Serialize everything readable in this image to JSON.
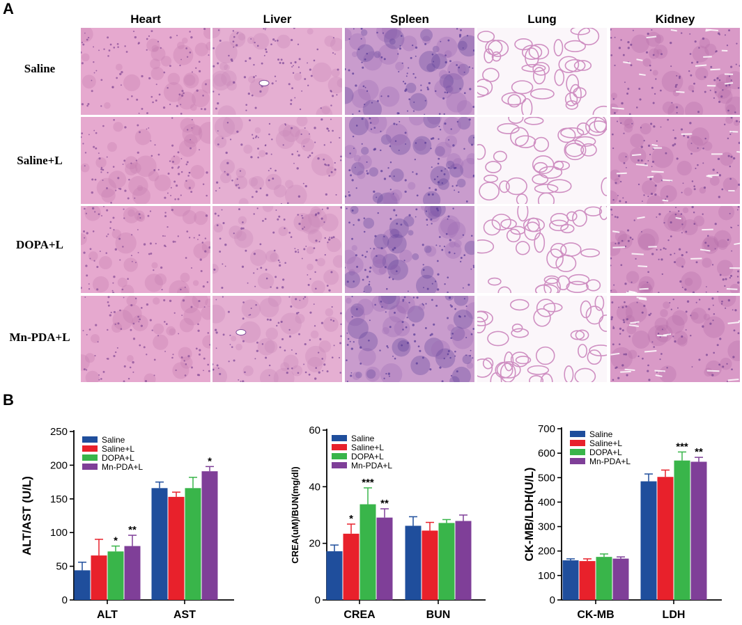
{
  "panel_a": {
    "label": "A",
    "columns": [
      "Heart",
      "Liver",
      "Spleen",
      "Lung",
      "Kidney"
    ],
    "rows": [
      "Saline",
      "Saline+L",
      "DOPA+L",
      "Mn-PDA+L"
    ],
    "tissue_colors": {
      "Heart": {
        "base": "#e6a9cf",
        "stain": "#c47cae",
        "dark": "#8a4f98"
      },
      "Liver": {
        "base": "#e5afd2",
        "stain": "#c787b8",
        "dark": "#7f4a98"
      },
      "Spleen": {
        "base": "#c99ccd",
        "stain": "#9a6bb5",
        "dark": "#5b3d98"
      },
      "Lung": {
        "base": "#fbf6fa",
        "stain": "#cf8fc2",
        "dark": "#8e5aa6"
      },
      "Kidney": {
        "base": "#d99ac7",
        "stain": "#b46ea8",
        "dark": "#7a4594"
      }
    }
  },
  "panel_b": {
    "label": "B"
  },
  "colors": {
    "Saline": "#1f4e9c",
    "Saline+L": "#e8212b",
    "DOPA+L": "#39b54a",
    "Mn-PDA+L": "#7f3f98"
  },
  "chart_data": [
    {
      "type": "bar",
      "categories": [
        "ALT",
        "AST"
      ],
      "series": [
        {
          "name": "Saline",
          "values": [
            44,
            166
          ],
          "errors": [
            12,
            9
          ]
        },
        {
          "name": "Saline+L",
          "values": [
            66,
            153
          ],
          "errors": [
            24,
            7
          ]
        },
        {
          "name": "DOPA+L",
          "values": [
            72,
            166
          ],
          "errors": [
            8,
            16
          ]
        },
        {
          "name": "Mn-PDA+L",
          "values": [
            80,
            191
          ],
          "errors": [
            16,
            7
          ]
        }
      ],
      "significance": [
        [
          "",
          ""
        ],
        [
          "",
          ""
        ],
        [
          "*",
          ""
        ],
        [
          "**",
          "*"
        ]
      ],
      "ylabel": "ALT/AST (U/L)",
      "ylim": [
        0,
        250
      ],
      "yticks": [
        0,
        50,
        100,
        150,
        200,
        250
      ],
      "legend": "top-left"
    },
    {
      "type": "bar",
      "categories": [
        "CREA",
        "BUN"
      ],
      "series": [
        {
          "name": "Saline",
          "values": [
            17.2,
            26.2
          ],
          "errors": [
            2.2,
            3.2
          ]
        },
        {
          "name": "Saline+L",
          "values": [
            23.4,
            24.5
          ],
          "errors": [
            3.4,
            2.9
          ]
        },
        {
          "name": "DOPA+L",
          "values": [
            33.8,
            27.2
          ],
          "errors": [
            5.8,
            1.2
          ]
        },
        {
          "name": "Mn-PDA+L",
          "values": [
            29.1,
            27.9
          ],
          "errors": [
            3.1,
            2.1
          ]
        }
      ],
      "significance": [
        [
          "",
          ""
        ],
        [
          "*",
          ""
        ],
        [
          "***",
          ""
        ],
        [
          "**",
          ""
        ]
      ],
      "ylabel": "CREA(uM)/BUN(mg/dl)",
      "ylim": [
        0,
        60
      ],
      "yticks": [
        0,
        20,
        40,
        60
      ],
      "legend": "top-left"
    },
    {
      "type": "bar",
      "categories": [
        "CK-MB",
        "LDH"
      ],
      "series": [
        {
          "name": "Saline",
          "values": [
            162,
            485
          ],
          "errors": [
            6,
            30
          ]
        },
        {
          "name": "Saline+L",
          "values": [
            159,
            503
          ],
          "errors": [
            9,
            28
          ]
        },
        {
          "name": "DOPA+L",
          "values": [
            176,
            570
          ],
          "errors": [
            12,
            35
          ]
        },
        {
          "name": "Mn-PDA+L",
          "values": [
            169,
            565
          ],
          "errors": [
            7,
            18
          ]
        }
      ],
      "significance": [
        [
          "",
          ""
        ],
        [
          "",
          ""
        ],
        [
          "",
          "***"
        ],
        [
          "",
          "**"
        ]
      ],
      "ylabel": "CK-MB/LDH(U/L)",
      "ylim": [
        0,
        700
      ],
      "yticks": [
        0,
        100,
        200,
        300,
        400,
        500,
        600,
        700
      ],
      "legend": "top-left"
    }
  ]
}
